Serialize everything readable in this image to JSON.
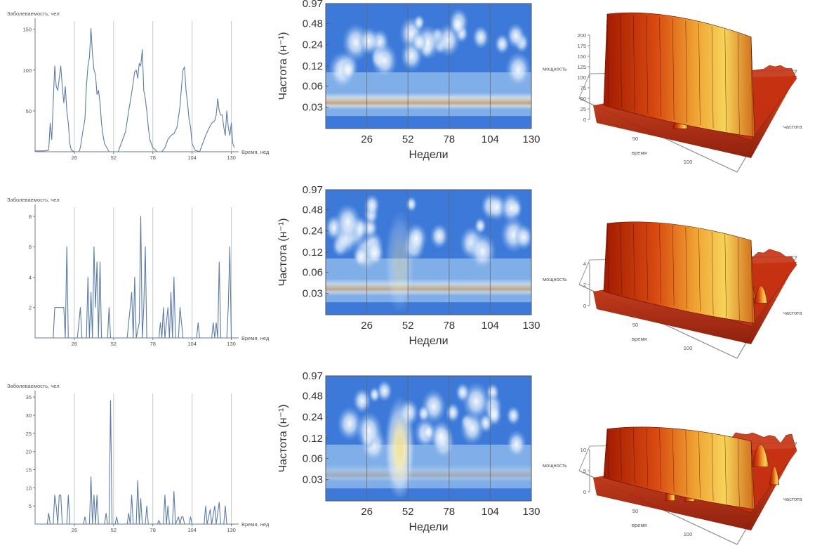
{
  "rows": [
    {
      "series": {
        "ylabel": "Заболеваемость, чел",
        "xlabel": "Время, нед",
        "yticks": [
          50,
          100,
          150
        ],
        "ymax": 160,
        "xticks": [
          26,
          52,
          78,
          104,
          130
        ],
        "xmax": 133,
        "peaks": [
          [
            0,
            1
          ],
          [
            6,
            1
          ],
          [
            9,
            2
          ],
          [
            10,
            35
          ],
          [
            11,
            15
          ],
          [
            12,
            60
          ],
          [
            13,
            105
          ],
          [
            14,
            80
          ],
          [
            15,
            75
          ],
          [
            16,
            90
          ],
          [
            17,
            105
          ],
          [
            18,
            80
          ],
          [
            19,
            60
          ],
          [
            20,
            80
          ],
          [
            21,
            50
          ],
          [
            22,
            35
          ],
          [
            23,
            10
          ],
          [
            24,
            2
          ],
          [
            26,
            0
          ],
          [
            29,
            0
          ],
          [
            30,
            5
          ],
          [
            31,
            18
          ],
          [
            33,
            40
          ],
          [
            34,
            80
          ],
          [
            35,
            105
          ],
          [
            36,
            115
          ],
          [
            37,
            151
          ],
          [
            38,
            120
          ],
          [
            39,
            100
          ],
          [
            40,
            95
          ],
          [
            41,
            70
          ],
          [
            42,
            75
          ],
          [
            43,
            60
          ],
          [
            44,
            35
          ],
          [
            45,
            20
          ],
          [
            46,
            10
          ],
          [
            49,
            0
          ],
          [
            55,
            0
          ],
          [
            57,
            10
          ],
          [
            60,
            25
          ],
          [
            62,
            50
          ],
          [
            64,
            72
          ],
          [
            66,
            98
          ],
          [
            67,
            100
          ],
          [
            68,
            90
          ],
          [
            69,
            108
          ],
          [
            70,
            105
          ],
          [
            71,
            125
          ],
          [
            72,
            75
          ],
          [
            73,
            65
          ],
          [
            74,
            50
          ],
          [
            75,
            30
          ],
          [
            76,
            15
          ],
          [
            78,
            5
          ],
          [
            81,
            0
          ],
          [
            84,
            0
          ],
          [
            86,
            5
          ],
          [
            88,
            15
          ],
          [
            90,
            20
          ],
          [
            92,
            22
          ],
          [
            94,
            30
          ],
          [
            96,
            55
          ],
          [
            97,
            80
          ],
          [
            98,
            100
          ],
          [
            99,
            104
          ],
          [
            100,
            75
          ],
          [
            101,
            60
          ],
          [
            102,
            40
          ],
          [
            103,
            30
          ],
          [
            104,
            10
          ],
          [
            106,
            2
          ],
          [
            109,
            0
          ],
          [
            111,
            10
          ],
          [
            113,
            20
          ],
          [
            115,
            28
          ],
          [
            117,
            35
          ],
          [
            119,
            38
          ],
          [
            120,
            45
          ],
          [
            121,
            65
          ],
          [
            122,
            50
          ],
          [
            123,
            45
          ],
          [
            124,
            45
          ],
          [
            125,
            30
          ],
          [
            126,
            20
          ],
          [
            127,
            50
          ],
          [
            128,
            30
          ],
          [
            129,
            20
          ],
          [
            130,
            35
          ],
          [
            131,
            10
          ],
          [
            132,
            5
          ]
        ]
      },
      "scalogram": {
        "ylabel": "Частота (н⁻¹)",
        "xlabel": "Недели",
        "yticks": [
          "0.97",
          "0.48",
          "0.24",
          "0.12",
          "0.06",
          "0.03"
        ],
        "xticks": [
          "26",
          "52",
          "78",
          "104",
          "130"
        ],
        "band": 0.7,
        "hotspot": 0.0
      },
      "surface": {
        "zlabel": "мощность",
        "xlabel": "время",
        "ylabel": "частота",
        "zticks": [
          "0",
          "25",
          "50",
          "75",
          "100",
          "125",
          "150",
          "175",
          "200"
        ],
        "xticks": [
          "50",
          "100"
        ],
        "ridge": 1.0,
        "noise": 0.15
      }
    },
    {
      "series": {
        "ylabel": "Заболеваемость, чел",
        "xlabel": "Время, нед",
        "yticks": [
          2,
          4,
          6,
          8
        ],
        "ymax": 8.6,
        "xticks": [
          26,
          52,
          78,
          104,
          130
        ],
        "xmax": 133,
        "peaks": [
          [
            0,
            0
          ],
          [
            12,
            0
          ],
          [
            13,
            2
          ],
          [
            19,
            2
          ],
          [
            20,
            0
          ],
          [
            21,
            6
          ],
          [
            22,
            0
          ],
          [
            28,
            0
          ],
          [
            29,
            1
          ],
          [
            30,
            2
          ],
          [
            31,
            0
          ],
          [
            34,
            0
          ],
          [
            35,
            4
          ],
          [
            36,
            0
          ],
          [
            37,
            3
          ],
          [
            38,
            0
          ],
          [
            39,
            6
          ],
          [
            40,
            2
          ],
          [
            41,
            5
          ],
          [
            42,
            0
          ],
          [
            43,
            5
          ],
          [
            44,
            0
          ],
          [
            48,
            0
          ],
          [
            49,
            2
          ],
          [
            50,
            0
          ],
          [
            61,
            0
          ],
          [
            62,
            1
          ],
          [
            63,
            2
          ],
          [
            64,
            3
          ],
          [
            65,
            0
          ],
          [
            66,
            4
          ],
          [
            67,
            0
          ],
          [
            69,
            1
          ],
          [
            70,
            8
          ],
          [
            71,
            0
          ],
          [
            72,
            2
          ],
          [
            73,
            6
          ],
          [
            74,
            0
          ],
          [
            82,
            0
          ],
          [
            83,
            1
          ],
          [
            84,
            0
          ],
          [
            85,
            2
          ],
          [
            86,
            0
          ],
          [
            87,
            1
          ],
          [
            88,
            2
          ],
          [
            89,
            0
          ],
          [
            90,
            3
          ],
          [
            91,
            0
          ],
          [
            92,
            4
          ],
          [
            93,
            0
          ],
          [
            95,
            0
          ],
          [
            96,
            2
          ],
          [
            97,
            1
          ],
          [
            98,
            0
          ],
          [
            107,
            0
          ],
          [
            108,
            1
          ],
          [
            109,
            0
          ],
          [
            117,
            0
          ],
          [
            118,
            1
          ],
          [
            119,
            0
          ],
          [
            120,
            1
          ],
          [
            121,
            0
          ],
          [
            122,
            5
          ],
          [
            123,
            0
          ],
          [
            127,
            0
          ],
          [
            128,
            2
          ],
          [
            129,
            6
          ],
          [
            130,
            0
          ],
          [
            133,
            0
          ]
        ]
      },
      "scalogram": {
        "ylabel": "Частота (н⁻¹)",
        "xlabel": "Недели",
        "yticks": [
          "0.97",
          "0.48",
          "0.24",
          "0.12",
          "0.06",
          "0.03"
        ],
        "xticks": [
          "26",
          "52",
          "78",
          "104",
          "130"
        ],
        "band": 0.6,
        "hotspot": 0.35
      },
      "surface": {
        "zlabel": "мощность",
        "xlabel": "время",
        "ylabel": "частота",
        "zticks": [
          "0",
          "2",
          "4"
        ],
        "xticks": [
          "50",
          "100"
        ],
        "ridge": 0.7,
        "noise": 0.45
      }
    },
    {
      "series": {
        "ylabel": "Заболеваемость, чел",
        "xlabel": "Время, нед",
        "yticks": [
          5,
          10,
          15,
          20,
          25,
          30,
          35
        ],
        "ymax": 36,
        "xticks": [
          26,
          52,
          78,
          104,
          130
        ],
        "xmax": 133,
        "peaks": [
          [
            0,
            0
          ],
          [
            8,
            0
          ],
          [
            9,
            3
          ],
          [
            10,
            0
          ],
          [
            12,
            0
          ],
          [
            13,
            8
          ],
          [
            14,
            5
          ],
          [
            15,
            0
          ],
          [
            16,
            8
          ],
          [
            17,
            8
          ],
          [
            18,
            0
          ],
          [
            21,
            0
          ],
          [
            22,
            8
          ],
          [
            23,
            0
          ],
          [
            32,
            0
          ],
          [
            33,
            2
          ],
          [
            34,
            0
          ],
          [
            36,
            0
          ],
          [
            37,
            13
          ],
          [
            38,
            0
          ],
          [
            39,
            8
          ],
          [
            40,
            0
          ],
          [
            41,
            8
          ],
          [
            42,
            0
          ],
          [
            46,
            0
          ],
          [
            47,
            3
          ],
          [
            48,
            0
          ],
          [
            49,
            0
          ],
          [
            50,
            34
          ],
          [
            51,
            0
          ],
          [
            53,
            0
          ],
          [
            54,
            2
          ],
          [
            55,
            0
          ],
          [
            61,
            0
          ],
          [
            62,
            3
          ],
          [
            63,
            0
          ],
          [
            64,
            8
          ],
          [
            65,
            0
          ],
          [
            67,
            0
          ],
          [
            68,
            12
          ],
          [
            69,
            0
          ],
          [
            70,
            7
          ],
          [
            71,
            0
          ],
          [
            73,
            0
          ],
          [
            74,
            5
          ],
          [
            75,
            0
          ],
          [
            81,
            0
          ],
          [
            82,
            1
          ],
          [
            83,
            0
          ],
          [
            85,
            0
          ],
          [
            86,
            8
          ],
          [
            87,
            0
          ],
          [
            88,
            5
          ],
          [
            89,
            0
          ],
          [
            91,
            0
          ],
          [
            92,
            9
          ],
          [
            93,
            0
          ],
          [
            95,
            2
          ],
          [
            96,
            0
          ],
          [
            97,
            2
          ],
          [
            98,
            2
          ],
          [
            99,
            0
          ],
          [
            102,
            0
          ],
          [
            103,
            2
          ],
          [
            104,
            0
          ],
          [
            112,
            0
          ],
          [
            113,
            5
          ],
          [
            114,
            0
          ],
          [
            116,
            4
          ],
          [
            117,
            0
          ],
          [
            119,
            5
          ],
          [
            120,
            0
          ],
          [
            122,
            6
          ],
          [
            123,
            0
          ],
          [
            125,
            0
          ],
          [
            126,
            5
          ],
          [
            127,
            0
          ],
          [
            130,
            0
          ]
        ]
      },
      "scalogram": {
        "ylabel": "Частота (н⁻¹)",
        "xlabel": "Недели",
        "yticks": [
          "0.97",
          "0.48",
          "0.24",
          "0.12",
          "0.06",
          "0.03"
        ],
        "xticks": [
          "26",
          "52",
          "78",
          "104",
          "130"
        ],
        "band": 0.3,
        "hotspot": 0.9
      },
      "surface": {
        "zlabel": "мощность",
        "xlabel": "время",
        "ylabel": "частота",
        "zticks": [
          "0",
          "5",
          "10"
        ],
        "xticks": [
          "50",
          "100"
        ],
        "ridge": 0.45,
        "noise": 0.55
      }
    }
  ],
  "chart_data": [
    {
      "type": "line",
      "title": "",
      "xlabel": "Время, нед",
      "ylabel": "Заболеваемость, чел",
      "xticks": [
        26,
        52,
        78,
        104,
        130
      ],
      "yticks": [
        50,
        100,
        150
      ],
      "ylim": [
        0,
        160
      ]
    },
    {
      "type": "heatmap",
      "xlabel": "Недели",
      "ylabel": "Частота (н⁻¹)",
      "xticks": [
        26,
        52,
        78,
        104,
        130
      ],
      "yticks": [
        0.97,
        0.48,
        0.24,
        0.12,
        0.06,
        0.03
      ]
    },
    {
      "type": "surface",
      "x": "время",
      "y": "частота",
      "z": "мощность",
      "zlim": [
        0,
        200
      ]
    },
    {
      "type": "line",
      "xlabel": "Время, нед",
      "ylabel": "Заболеваемость, чел",
      "yticks": [
        2,
        4,
        6,
        8
      ],
      "ylim": [
        0,
        8.6
      ]
    },
    {
      "type": "heatmap",
      "xlabel": "Недели",
      "ylabel": "Частота (н⁻¹)"
    },
    {
      "type": "surface",
      "x": "время",
      "y": "частота",
      "z": "мощность",
      "zlim": [
        0,
        5
      ]
    },
    {
      "type": "line",
      "xlabel": "Время, нед",
      "ylabel": "Заболеваемость, чел",
      "yticks": [
        5,
        10,
        15,
        20,
        25,
        30,
        35
      ],
      "ylim": [
        0,
        36
      ]
    },
    {
      "type": "heatmap",
      "xlabel": "Недели",
      "ylabel": "Частота (н⁻¹)"
    },
    {
      "type": "surface",
      "x": "время",
      "y": "частота",
      "z": "мощность",
      "zlim": [
        0,
        12
      ]
    }
  ]
}
